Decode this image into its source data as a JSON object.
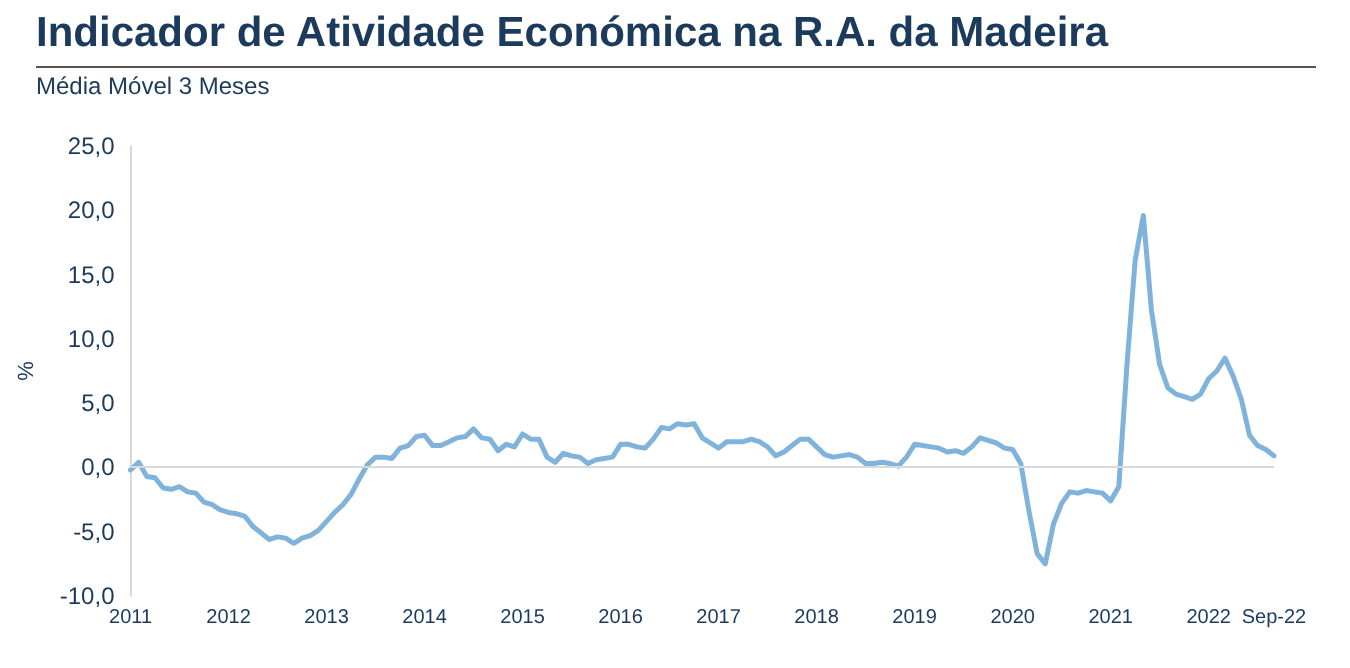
{
  "chart_data": {
    "type": "line",
    "title": "Indicador de Atividade Económica na R.A. da Madeira",
    "subtitle": "Média Móvel 3 Meses",
    "ylabel": "%",
    "categories": [
      "2011",
      null,
      null,
      null,
      null,
      null,
      null,
      null,
      null,
      null,
      null,
      null,
      "2012",
      null,
      null,
      null,
      null,
      null,
      null,
      null,
      null,
      null,
      null,
      null,
      "2013",
      null,
      null,
      null,
      null,
      null,
      null,
      null,
      null,
      null,
      null,
      null,
      "2014",
      null,
      null,
      null,
      null,
      null,
      null,
      null,
      null,
      null,
      null,
      null,
      "2015",
      null,
      null,
      null,
      null,
      null,
      null,
      null,
      null,
      null,
      null,
      null,
      "2016",
      null,
      null,
      null,
      null,
      null,
      null,
      null,
      null,
      null,
      null,
      null,
      "2017",
      null,
      null,
      null,
      null,
      null,
      null,
      null,
      null,
      null,
      null,
      null,
      "2018",
      null,
      null,
      null,
      null,
      null,
      null,
      null,
      null,
      null,
      null,
      null,
      "2019",
      null,
      null,
      null,
      null,
      null,
      null,
      null,
      null,
      null,
      null,
      null,
      "2020",
      null,
      null,
      null,
      null,
      null,
      null,
      null,
      null,
      null,
      null,
      null,
      "2021",
      null,
      null,
      null,
      null,
      null,
      null,
      null,
      null,
      null,
      null,
      null,
      "2022",
      null,
      null,
      null,
      null,
      null,
      null,
      null,
      "Sep-22"
    ],
    "series": [
      {
        "color": "#7fb3dc",
        "values": [
          -0.2,
          0.4,
          -0.7,
          -0.8,
          -1.6,
          -1.7,
          -1.5,
          -1.9,
          -2.0,
          -2.7,
          -2.9,
          -3.3,
          -3.5,
          -3.6,
          -3.8,
          -4.6,
          -5.1,
          -5.6,
          -5.4,
          -5.5,
          -5.9,
          -5.5,
          -5.3,
          -4.9,
          -4.2,
          -3.5,
          -2.9,
          -2.1,
          -0.9,
          0.2,
          0.8,
          0.8,
          0.7,
          1.5,
          1.7,
          2.4,
          2.5,
          1.7,
          1.7,
          2.0,
          2.3,
          2.4,
          3.0,
          2.3,
          2.2,
          1.3,
          1.8,
          1.6,
          2.6,
          2.2,
          2.2,
          0.8,
          0.4,
          1.1,
          0.9,
          0.8,
          0.3,
          0.6,
          0.7,
          0.8,
          1.8,
          1.8,
          1.6,
          1.5,
          2.2,
          3.1,
          3.0,
          3.4,
          3.3,
          3.4,
          2.3,
          1.9,
          1.5,
          2.0,
          2.0,
          2.0,
          2.2,
          2.0,
          1.6,
          0.9,
          1.2,
          1.7,
          2.2,
          2.2,
          1.6,
          1.0,
          0.8,
          0.9,
          1.0,
          0.8,
          0.3,
          0.3,
          0.4,
          0.3,
          0.1,
          0.8,
          1.8,
          1.7,
          1.6,
          1.5,
          1.2,
          1.3,
          1.1,
          1.6,
          2.3,
          2.1,
          1.9,
          1.5,
          1.4,
          0.3,
          -3.4,
          -6.7,
          -7.5,
          -4.4,
          -2.8,
          -1.9,
          -2.0,
          -1.8,
          -1.9,
          -2.0,
          -2.6,
          -1.5,
          8.0,
          16.1,
          19.6,
          12.2,
          8.0,
          6.2,
          5.7,
          5.5,
          5.3,
          5.7,
          6.9,
          7.5,
          8.5,
          7.1,
          5.3,
          2.5,
          1.7,
          1.4,
          0.9
        ]
      }
    ],
    "ylim": [
      -10,
      25
    ],
    "yticks": [
      {
        "value": -10,
        "label": "-10,0"
      },
      {
        "value": -5,
        "label": "-5,0"
      },
      {
        "value": 0,
        "label": "0,0"
      },
      {
        "value": 5,
        "label": "5,0"
      },
      {
        "value": 10,
        "label": "10,0"
      },
      {
        "value": 15,
        "label": "15,0"
      },
      {
        "value": 20,
        "label": "20,0"
      },
      {
        "value": 25,
        "label": "25,0"
      }
    ],
    "ref_lines": [
      {
        "axis": "y",
        "value": 0,
        "color": "#d9d9d9"
      }
    ],
    "marker": "none",
    "line_style": "solid"
  }
}
